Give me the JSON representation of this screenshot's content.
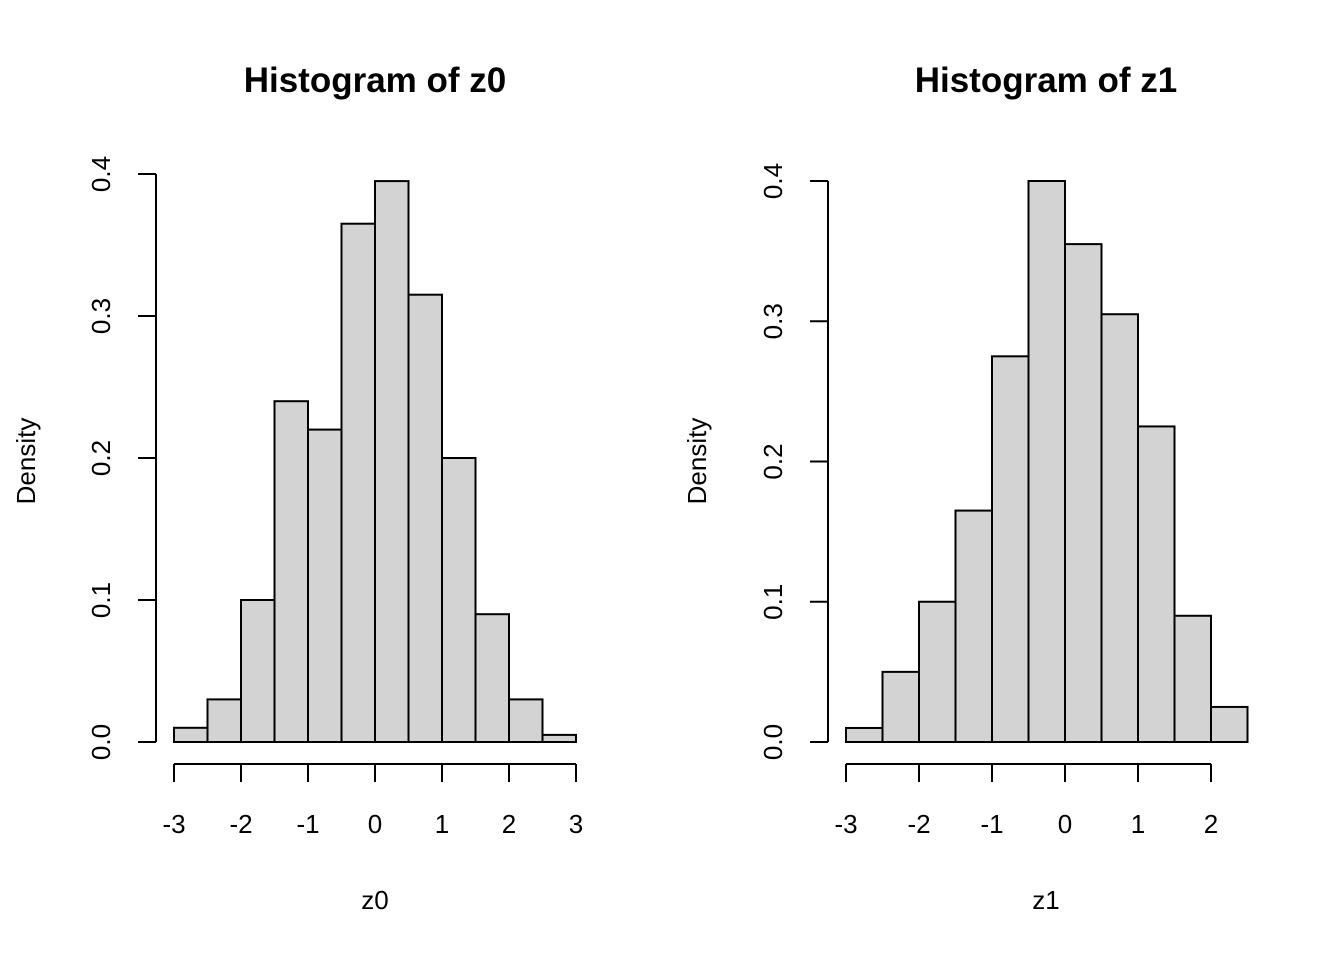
{
  "chart_data": [
    {
      "type": "bar",
      "title": "Histogram of z0",
      "xlabel": "z0",
      "ylabel": "Density",
      "breaks": [
        -3,
        -2.5,
        -2,
        -1.5,
        -1,
        -0.5,
        0,
        0.5,
        1,
        1.5,
        2,
        2.5,
        3
      ],
      "values": [
        0.01,
        0.03,
        0.1,
        0.24,
        0.22,
        0.365,
        0.395,
        0.315,
        0.2,
        0.09,
        0.03,
        0.005
      ],
      "xticks": [
        "-3",
        "-2",
        "-1",
        "0",
        "1",
        "2",
        "3"
      ],
      "yticks": [
        "0.0",
        "0.1",
        "0.2",
        "0.3",
        "0.4"
      ],
      "xlim": [
        -3,
        3
      ],
      "ylim": [
        0,
        0.4
      ],
      "grid": false
    },
    {
      "type": "bar",
      "title": "Histogram of z1",
      "xlabel": "z1",
      "ylabel": "Density",
      "breaks": [
        -3,
        -2.5,
        -2,
        -1.5,
        -1,
        -0.5,
        0,
        0.5,
        1,
        1.5,
        2,
        2.5
      ],
      "values": [
        0.01,
        0.05,
        0.1,
        0.165,
        0.275,
        0.4,
        0.355,
        0.305,
        0.225,
        0.09,
        0.025
      ],
      "xticks": [
        "-3",
        "-2",
        "-1",
        "0",
        "1",
        "2"
      ],
      "yticks": [
        "0.0",
        "0.1",
        "0.2",
        "0.3",
        "0.4"
      ],
      "xlim": [
        -3,
        2
      ],
      "ylim": [
        0,
        0.4
      ],
      "grid": false
    }
  ]
}
